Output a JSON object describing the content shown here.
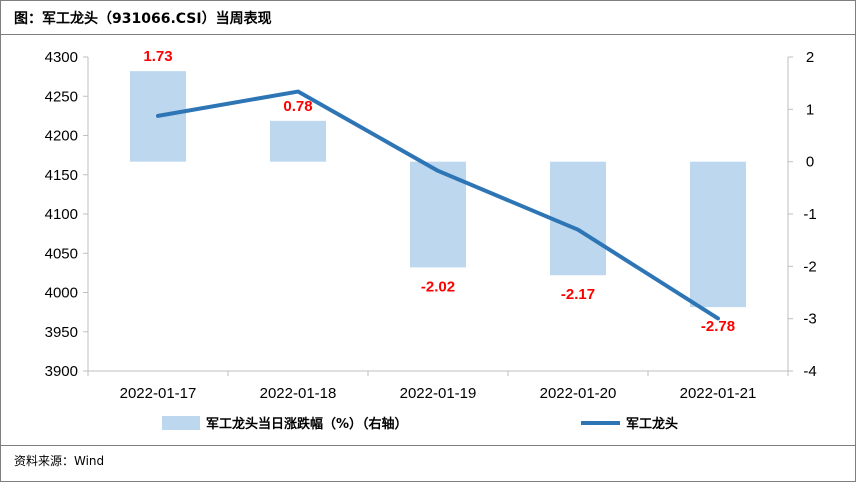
{
  "title": "图：军工龙头（931066.CSI）当周表现",
  "source": "资料来源：Wind",
  "colors": {
    "bar": "#bdd7ee",
    "line": "#2e75b6",
    "label": "#ff0000",
    "axis": "#bfbfbf"
  },
  "chart_data": {
    "type": "bar+line",
    "categories": [
      "2022-01-17",
      "2022-01-18",
      "2022-01-19",
      "2022-01-20",
      "2022-01-21"
    ],
    "series": [
      {
        "name": "军工龙头当日涨跌幅（%）（右轴）",
        "type": "bar",
        "axis": "right",
        "values": [
          1.73,
          0.78,
          -2.02,
          -2.17,
          -2.78
        ],
        "labels": [
          "1.73",
          "0.78",
          "-2.02",
          "-2.17",
          "-2.78"
        ]
      },
      {
        "name": "军工龙头",
        "type": "line",
        "axis": "left",
        "values": [
          4225,
          4256,
          4155,
          4080,
          3967
        ]
      }
    ],
    "left_axis": {
      "min": 3900,
      "max": 4300,
      "ticks": [
        "4300",
        "4250",
        "4200",
        "4150",
        "4100",
        "4050",
        "4000",
        "3950",
        "3900"
      ]
    },
    "right_axis": {
      "min": -4,
      "max": 2,
      "ticks": [
        "2",
        "1",
        "0",
        "-1",
        "-2",
        "-3",
        "-4"
      ]
    },
    "legend": [
      "军工龙头当日涨跌幅（%）（右轴）",
      "军工龙头"
    ],
    "legend_position": "bottom"
  }
}
